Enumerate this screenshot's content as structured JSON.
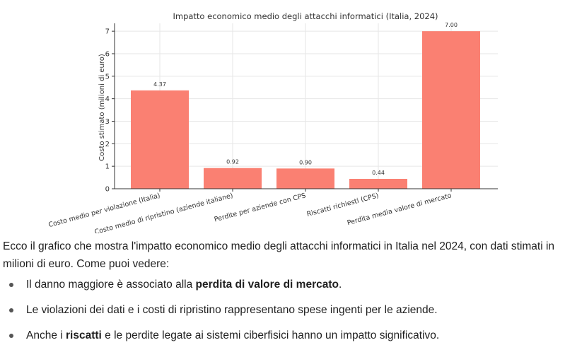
{
  "chart_data": {
    "type": "bar",
    "title": "Impatto economico medio degli attacchi informatici (Italia, 2024)",
    "xlabel": "",
    "ylabel": "Costo stimato (milioni di euro)",
    "categories": [
      "Costo medio per violazione (Italia)",
      "Costo medio di ripristino (aziende italiane)",
      "Perdite per aziende con CPS",
      "Riscatti richiesti (CPS)",
      "Perdita media valore di mercato"
    ],
    "values": [
      4.37,
      0.92,
      0.9,
      0.44,
      7.0
    ],
    "value_labels": [
      "4.37",
      "0.92",
      "0.90",
      "0.44",
      "7.00"
    ],
    "ylim": [
      0,
      7.35
    ],
    "yticks": [
      0,
      1,
      2,
      3,
      4,
      5,
      6,
      7
    ],
    "grid": true,
    "bar_color": "#fa8072"
  },
  "text": {
    "intro": "Ecco il grafico che mostra l'impatto economico medio degli attacchi informatici in Italia nel 2024, con dati stimati in milioni di euro. Come puoi vedere:",
    "bullets": [
      {
        "before": "Il danno maggiore è associato alla ",
        "bold": "perdita di valore di mercato",
        "after": "."
      },
      {
        "before": "Le violazioni dei dati e i costi di ripristino rappresentano spese ingenti per le aziende.",
        "bold": "",
        "after": ""
      },
      {
        "before": "Anche i ",
        "bold": "riscatti",
        "after": " e le perdite legate ai sistemi ciberfisici hanno un impatto significativo."
      }
    ]
  }
}
